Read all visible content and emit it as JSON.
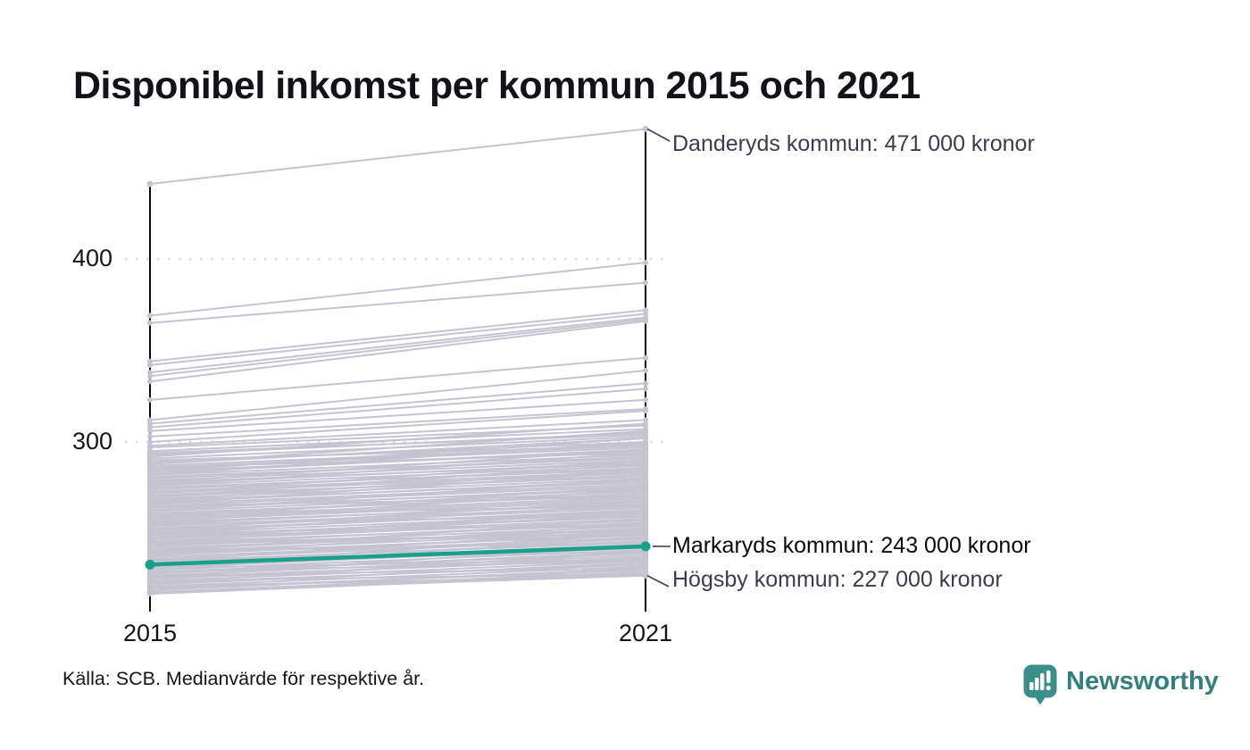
{
  "title": "Disponibel inkomst per kommun 2015 och 2021",
  "source": "Källa: SCB. Medianvärde för respektive år.",
  "branding": {
    "name": "Newsworthy",
    "icon": "newsworthy-chart-bubble-icon",
    "icon_color": "#3a8f89",
    "text_color": "#337f7c"
  },
  "chart_data": {
    "type": "line",
    "subtype": "slope-chart",
    "title": "Disponibel inkomst per kommun 2015 och 2021",
    "x": [
      2015,
      2021
    ],
    "x_labels": [
      "2015",
      "2021"
    ],
    "y_ticks": [
      "400",
      "300"
    ],
    "y_tick_values": [
      400,
      300
    ],
    "unit": "tusen kronor",
    "grid": "dotted horizontal gridlines at 300 and 400",
    "legend": "none",
    "series_color": "#c6c3d1",
    "highlight_color": "#18a08a",
    "label_color": "#3c3c50",
    "annotations": [
      {
        "name": "Danderyds kommun",
        "label": "Danderyds kommun: 471 000 kronor",
        "values": [
          441,
          471
        ],
        "highlight": false
      },
      {
        "name": "Markaryds kommun",
        "label": "Markaryds kommun: 243 000 kronor",
        "values": [
          233,
          243
        ],
        "highlight": true
      },
      {
        "name": "Högsby kommun",
        "label": "Högsby kommun: 227 000 kronor",
        "values": [
          218,
          227
        ],
        "highlight": false
      }
    ],
    "background_lines": [
      [
        369,
        398
      ],
      [
        365,
        387
      ],
      [
        344,
        372
      ],
      [
        342,
        370
      ],
      [
        338,
        368
      ],
      [
        336,
        367
      ],
      [
        333,
        366
      ],
      [
        323,
        346
      ],
      [
        312,
        339
      ],
      [
        310,
        332
      ],
      [
        308,
        329
      ],
      [
        306,
        323
      ],
      [
        303,
        318
      ],
      [
        300,
        317
      ],
      [
        298,
        312
      ],
      [
        297,
        309
      ],
      [
        295,
        307
      ],
      [
        293,
        305
      ],
      [
        291,
        303
      ],
      [
        289,
        300
      ],
      [
        288,
        302
      ],
      [
        287,
        298
      ],
      [
        286,
        297
      ],
      [
        285,
        299
      ],
      [
        284,
        295
      ],
      [
        283,
        296
      ],
      [
        282,
        293
      ],
      [
        281,
        291
      ],
      [
        280,
        292
      ],
      [
        279,
        290
      ],
      [
        278,
        288
      ],
      [
        277,
        289
      ],
      [
        276,
        287
      ],
      [
        275,
        285
      ],
      [
        274,
        286
      ],
      [
        273,
        284
      ],
      [
        272,
        283
      ],
      [
        271,
        281
      ],
      [
        270,
        282
      ],
      [
        269,
        280
      ],
      [
        268,
        278
      ],
      [
        267,
        279
      ],
      [
        266,
        277
      ],
      [
        265,
        276
      ],
      [
        264,
        274
      ],
      [
        263,
        275
      ],
      [
        262,
        273
      ],
      [
        261,
        271
      ],
      [
        260,
        272
      ],
      [
        259,
        270
      ],
      [
        258,
        269
      ],
      [
        257,
        268
      ],
      [
        256,
        266
      ],
      [
        255,
        267
      ],
      [
        254,
        265
      ],
      [
        253,
        264
      ],
      [
        252,
        262
      ],
      [
        251,
        263
      ],
      [
        250,
        261
      ],
      [
        249,
        259
      ],
      [
        248,
        260
      ],
      [
        247,
        258
      ],
      [
        246,
        257
      ],
      [
        245,
        255
      ],
      [
        244,
        256
      ],
      [
        243,
        254
      ],
      [
        242,
        252
      ],
      [
        241,
        253
      ],
      [
        240,
        251
      ],
      [
        239,
        249
      ],
      [
        238,
        250
      ],
      [
        237,
        248
      ],
      [
        236,
        247
      ],
      [
        235,
        245
      ],
      [
        234,
        246
      ],
      [
        233,
        244
      ],
      [
        232,
        242
      ],
      [
        231,
        243
      ],
      [
        230,
        241
      ],
      [
        229,
        239
      ],
      [
        228,
        240
      ],
      [
        227,
        238
      ],
      [
        226,
        236
      ],
      [
        225,
        237
      ],
      [
        224,
        235
      ],
      [
        223,
        233
      ],
      [
        222,
        234
      ],
      [
        221,
        232
      ],
      [
        220,
        230
      ],
      [
        219,
        231
      ],
      [
        218,
        229
      ],
      [
        217,
        228
      ],
      [
        252,
        268
      ],
      [
        247,
        262
      ],
      [
        268,
        285
      ],
      [
        240,
        258
      ],
      [
        235,
        252
      ],
      [
        230,
        248
      ],
      [
        226,
        244
      ],
      [
        262,
        280
      ],
      [
        256,
        274
      ],
      [
        250,
        266
      ],
      [
        245,
        261
      ],
      [
        238,
        255
      ],
      [
        232,
        250
      ],
      [
        244,
        250
      ],
      [
        229,
        235
      ],
      [
        223,
        240
      ],
      [
        221,
        227
      ],
      [
        258,
        276
      ],
      [
        266,
        284
      ],
      [
        272,
        290
      ],
      [
        278,
        296
      ],
      [
        284,
        302
      ],
      [
        288,
        306
      ],
      [
        292,
        310
      ],
      [
        294,
        304
      ],
      [
        290,
        298
      ],
      [
        286,
        294
      ],
      [
        282,
        300
      ],
      [
        276,
        294
      ],
      [
        270,
        288
      ],
      [
        265,
        270
      ],
      [
        260,
        265
      ],
      [
        255,
        260
      ],
      [
        250,
        255
      ],
      [
        245,
        250
      ],
      [
        240,
        245
      ],
      [
        236,
        240
      ],
      [
        231,
        236
      ],
      [
        227,
        231
      ],
      [
        224,
        228
      ]
    ]
  }
}
